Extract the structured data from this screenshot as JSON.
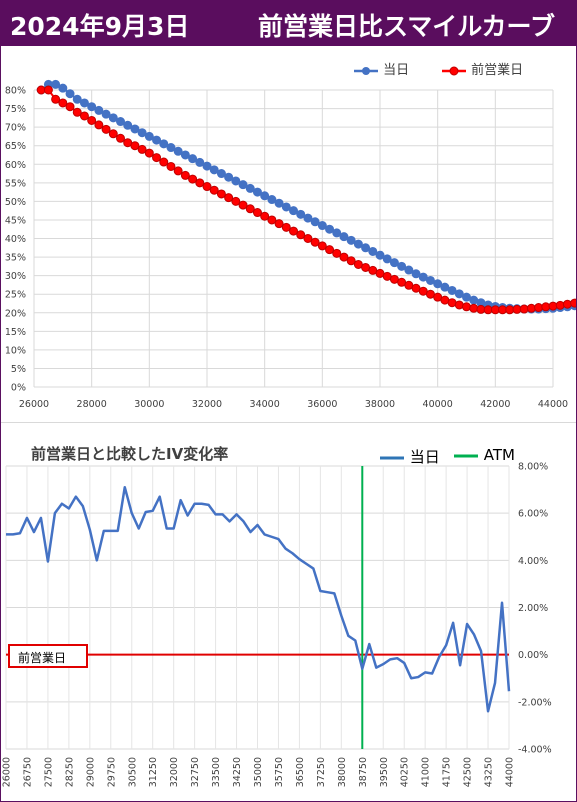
{
  "header": {
    "date": "2024年9月3日",
    "title": "前営業日比スマイルカーブ"
  },
  "colors": {
    "header_bg": "#5a0d5e",
    "today": "#4472c4",
    "prev": "#ff0000",
    "iv_change": "#4472c4",
    "atm": "#00b050",
    "zero": "#e00000"
  },
  "chart_data": [
    {
      "type": "line",
      "legend": {
        "today": "当日",
        "prev": "前営業日"
      },
      "xlim": [
        26000,
        44000
      ],
      "ylim": [
        0,
        80
      ],
      "x_ticks": [
        "26000",
        "28000",
        "30000",
        "32000",
        "34000",
        "36000",
        "38000",
        "40000",
        "42000",
        "44000"
      ],
      "y_ticks": [
        "0%",
        "5%",
        "10%",
        "15%",
        "20%",
        "25%",
        "30%",
        "35%",
        "40%",
        "45%",
        "50%",
        "55%",
        "60%",
        "65%",
        "70%",
        "75%",
        "80%"
      ],
      "legend_position": "top-right",
      "x_start": 26250,
      "x_step": 250,
      "series": [
        {
          "name": "当日",
          "values": [
            80,
            81.5,
            81.5,
            80.5,
            79,
            77.5,
            76.5,
            75.5,
            74.5,
            73.5,
            72.5,
            71.5,
            70.5,
            69.5,
            68.5,
            67.5,
            66.5,
            65.5,
            64.5,
            63.5,
            62.5,
            61.5,
            60.5,
            59.5,
            58.5,
            57.5,
            56.5,
            55.5,
            54.5,
            53.5,
            52.5,
            51.5,
            50.5,
            49.5,
            48.5,
            47.5,
            46.5,
            45.5,
            44.5,
            43.5,
            42.5,
            41.5,
            40.5,
            39.5,
            38.5,
            37.5,
            36.5,
            35.5,
            34.5,
            33.5,
            32.5,
            31.5,
            30.5,
            29.6,
            28.7,
            27.8,
            26.9,
            26,
            25.1,
            24.2,
            23.4,
            22.7,
            22.1,
            21.7,
            21.4,
            21.2,
            21.1,
            21,
            21,
            21,
            21.1,
            21.2,
            21.4,
            21.6,
            21.9,
            22.2,
            22.5,
            22.9,
            23.3,
            23.7,
            24.2,
            24.7,
            25.2,
            25.7,
            26.2,
            26.8
          ]
        },
        {
          "name": "前営業日",
          "values": [
            80,
            80,
            77.5,
            76.5,
            75.5,
            74,
            73,
            71.8,
            70.6,
            69.4,
            68.2,
            67,
            65.8,
            65,
            64,
            63,
            61.8,
            60.6,
            59.4,
            58.2,
            57,
            56,
            55,
            54,
            53,
            52,
            51,
            50,
            49,
            48,
            47,
            46,
            45,
            44,
            43,
            42,
            41,
            40,
            39,
            38,
            37,
            36,
            35,
            34,
            33,
            32.2,
            31.4,
            30.6,
            29.8,
            29,
            28.2,
            27.4,
            26.6,
            25.8,
            25,
            24.2,
            23.4,
            22.7,
            22.1,
            21.6,
            21.2,
            20.9,
            20.8,
            20.8,
            20.8,
            20.8,
            20.9,
            21,
            21.2,
            21.4,
            21.6,
            21.8,
            22,
            22.3,
            22.6,
            22.9,
            23.2,
            23.6,
            24,
            24.4,
            24.8,
            25.2,
            25.6,
            26.2,
            27
          ]
        }
      ]
    },
    {
      "type": "line",
      "title": "前営業日と比較したIV変化率",
      "legend": {
        "today": "当日",
        "atm": "ATM"
      },
      "legend_position": "top-right",
      "ylim": [
        -4,
        8
      ],
      "y_ticks": [
        "8.00%",
        "6.00%",
        "4.00%",
        "2.00%",
        "0.00%",
        "-2.00%",
        "-4.00%"
      ],
      "x_ticks": [
        "26000",
        "26750",
        "27500",
        "28250",
        "29000",
        "29750",
        "30500",
        "31250",
        "32000",
        "32750",
        "33500",
        "34250",
        "35000",
        "35750",
        "36500",
        "37250",
        "38000",
        "38750",
        "39500",
        "40250",
        "41000",
        "41750",
        "42500",
        "43250",
        "44000"
      ],
      "x_start": 26000,
      "x_step": 250,
      "atm_strike": 38750,
      "zero_label": "前営業日",
      "series": [
        {
          "name": "当日",
          "values": [
            5.1,
            5.1,
            5.15,
            5.8,
            5.2,
            5.8,
            3.95,
            6.0,
            6.4,
            6.2,
            6.7,
            6.3,
            5.3,
            4.0,
            5.25,
            5.25,
            5.25,
            7.1,
            6.0,
            5.35,
            6.05,
            6.1,
            6.7,
            5.35,
            5.35,
            6.55,
            5.9,
            6.4,
            6.4,
            6.35,
            5.95,
            5.95,
            5.65,
            5.95,
            5.65,
            5.2,
            5.5,
            5.1,
            5.0,
            4.9,
            4.5,
            4.3,
            4.05,
            3.85,
            3.65,
            2.7,
            2.65,
            2.6,
            1.65,
            0.8,
            0.6,
            -0.6,
            0.45,
            -0.55,
            -0.4,
            -0.2,
            -0.15,
            -0.35,
            -1.0,
            -0.95,
            -0.75,
            -0.8,
            -0.1,
            0.4,
            1.35,
            -0.45,
            1.3,
            0.85,
            0.15,
            -2.4,
            -1.2,
            2.2,
            -1.55
          ]
        }
      ]
    }
  ]
}
